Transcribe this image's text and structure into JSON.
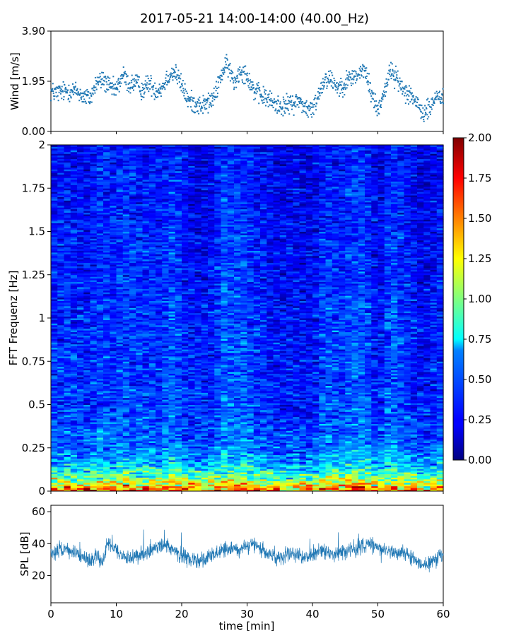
{
  "figure": {
    "title": "2017-05-21 14:00-14:00 (40.00_Hz)"
  },
  "chart_data": [
    {
      "type": "scatter",
      "ylabel": "Wind [m/s]",
      "xlim": [
        0,
        60
      ],
      "ylim": [
        0.0,
        3.9
      ],
      "yticks": [
        "0.00",
        "1.95",
        "3.90"
      ],
      "color": "#1f77b4",
      "x_step_min": 0.05,
      "y_keyframes": [
        [
          0,
          1.55
        ],
        [
          1,
          1.5
        ],
        [
          2,
          1.55
        ],
        [
          3,
          1.6
        ],
        [
          4,
          1.55
        ],
        [
          5,
          1.35
        ],
        [
          6,
          1.3
        ],
        [
          7,
          1.9
        ],
        [
          8,
          2.0
        ],
        [
          9,
          1.7
        ],
        [
          10,
          1.6
        ],
        [
          11,
          2.2
        ],
        [
          12,
          1.8
        ],
        [
          13,
          1.9
        ],
        [
          14,
          1.6
        ],
        [
          15,
          1.9
        ],
        [
          16,
          1.6
        ],
        [
          17,
          1.7
        ],
        [
          18,
          2.2
        ],
        [
          19,
          2.3
        ],
        [
          20,
          1.8
        ],
        [
          21,
          1.2
        ],
        [
          22,
          1.1
        ],
        [
          23,
          1.0
        ],
        [
          24,
          1.1
        ],
        [
          25,
          1.3
        ],
        [
          26,
          2.2
        ],
        [
          27,
          2.6
        ],
        [
          28,
          1.9
        ],
        [
          29,
          2.4
        ],
        [
          30,
          2.2
        ],
        [
          31,
          1.6
        ],
        [
          32,
          1.4
        ],
        [
          33,
          1.3
        ],
        [
          34,
          1.1
        ],
        [
          35,
          1.0
        ],
        [
          36,
          1.0
        ],
        [
          37,
          1.1
        ],
        [
          38,
          1.2
        ],
        [
          39,
          0.9
        ],
        [
          40,
          0.8
        ],
        [
          41,
          1.5
        ],
        [
          42,
          2.1
        ],
        [
          43,
          2.0
        ],
        [
          44,
          1.7
        ],
        [
          45,
          1.9
        ],
        [
          46,
          2.1
        ],
        [
          47,
          2.2
        ],
        [
          48,
          2.4
        ],
        [
          49,
          1.5
        ],
        [
          50,
          0.8
        ],
        [
          51,
          1.6
        ],
        [
          52,
          2.4
        ],
        [
          53,
          2.0
        ],
        [
          54,
          1.6
        ],
        [
          55,
          1.5
        ],
        [
          56,
          1.0
        ],
        [
          57,
          0.7
        ],
        [
          58,
          0.9
        ],
        [
          59,
          1.4
        ],
        [
          60,
          1.3
        ]
      ]
    },
    {
      "type": "heatmap",
      "ylabel": "FFT Frequenz [Hz]",
      "xlim": [
        0,
        60
      ],
      "ylim": [
        0,
        2
      ],
      "yticks": [
        "0",
        "0.25",
        "0.5",
        "0.75",
        "1",
        "1.25",
        "1.5",
        "1.75",
        "2"
      ],
      "colormap": "jet",
      "vmin": 0.0,
      "vmax": 2.0,
      "colorbar_ticks": [
        "0.00",
        "0.25",
        "0.50",
        "0.75",
        "1.00",
        "1.25",
        "1.50",
        "1.75",
        "2.00"
      ],
      "n_time_bins": 60,
      "n_freq_bins": 200,
      "mean_profile_by_freq_hz": [
        [
          0.0,
          1.55
        ],
        [
          0.025,
          1.35
        ],
        [
          0.05,
          1.15
        ],
        [
          0.1,
          0.85
        ],
        [
          0.15,
          0.65
        ],
        [
          0.25,
          0.45
        ],
        [
          0.4,
          0.38
        ],
        [
          0.6,
          0.34
        ],
        [
          1.0,
          0.32
        ],
        [
          1.5,
          0.28
        ],
        [
          2.0,
          0.25
        ]
      ]
    },
    {
      "type": "line",
      "ylabel": "SPL [dB]",
      "xlabel": "time [min]",
      "xlim": [
        0,
        60
      ],
      "xticks": [
        "0",
        "10",
        "20",
        "30",
        "40",
        "50",
        "60"
      ],
      "ylim": [
        3,
        64
      ],
      "yticks": [
        "20",
        "40",
        "60"
      ],
      "color": "#1f77b4",
      "y_keyframes": [
        [
          0,
          34
        ],
        [
          2,
          37
        ],
        [
          4,
          33
        ],
        [
          6,
          30
        ],
        [
          7,
          32
        ],
        [
          8,
          28
        ],
        [
          8.7,
          42
        ],
        [
          9.5,
          38
        ],
        [
          10.5,
          33
        ],
        [
          12,
          30
        ],
        [
          14,
          34
        ],
        [
          16,
          37
        ],
        [
          17.5,
          40
        ],
        [
          19,
          35
        ],
        [
          21,
          31
        ],
        [
          23,
          29
        ],
        [
          25,
          33
        ],
        [
          27,
          38
        ],
        [
          29,
          36
        ],
        [
          31,
          40
        ],
        [
          33,
          33
        ],
        [
          35,
          31
        ],
        [
          37,
          34
        ],
        [
          39,
          31
        ],
        [
          41,
          36
        ],
        [
          43,
          33
        ],
        [
          45,
          35
        ],
        [
          47,
          38
        ],
        [
          48.5,
          40
        ],
        [
          50,
          37
        ],
        [
          52,
          34
        ],
        [
          54,
          35
        ],
        [
          56,
          29
        ],
        [
          57.5,
          26
        ],
        [
          59,
          31
        ],
        [
          60,
          33
        ]
      ]
    }
  ]
}
